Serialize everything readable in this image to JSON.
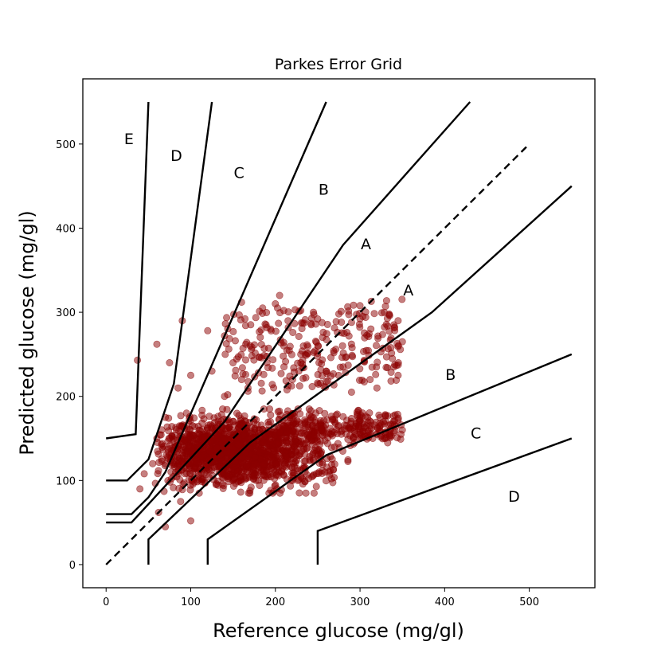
{
  "chart_data": {
    "type": "scatter",
    "title": "Parkes Error Grid",
    "xlabel": "Reference glucose (mg/gl)",
    "ylabel": "Predicted glucose (mg/gl)",
    "xlim": [
      -27.5,
      577.5
    ],
    "ylim": [
      -27.5,
      577.5
    ],
    "xticks": [
      0,
      100,
      200,
      300,
      400,
      500
    ],
    "yticks": [
      0,
      100,
      200,
      300,
      400,
      500
    ],
    "grid": false,
    "point_color": "#8b0000",
    "identity_line": [
      [
        0,
        0
      ],
      [
        500,
        500
      ]
    ],
    "zone_boundaries": [
      {
        "name": "A-B upper",
        "points": [
          [
            0,
            50
          ],
          [
            30,
            50
          ],
          [
            140,
            170
          ],
          [
            280,
            380
          ],
          [
            430,
            550
          ]
        ]
      },
      {
        "name": "A-B lower",
        "points": [
          [
            50,
            0
          ],
          [
            50,
            30
          ],
          [
            170,
            145
          ],
          [
            385,
            300
          ],
          [
            550,
            450
          ]
        ]
      },
      {
        "name": "B-C upper",
        "points": [
          [
            0,
            60
          ],
          [
            30,
            60
          ],
          [
            50,
            80
          ],
          [
            70,
            110
          ],
          [
            260,
            550
          ]
        ]
      },
      {
        "name": "B-C lower",
        "points": [
          [
            120,
            0
          ],
          [
            120,
            30
          ],
          [
            260,
            130
          ],
          [
            550,
            250
          ]
        ]
      },
      {
        "name": "C-D upper",
        "points": [
          [
            0,
            100
          ],
          [
            25,
            100
          ],
          [
            50,
            125
          ],
          [
            80,
            215
          ],
          [
            125,
            550
          ]
        ]
      },
      {
        "name": "C-D lower",
        "points": [
          [
            250,
            0
          ],
          [
            250,
            40
          ],
          [
            550,
            150
          ]
        ]
      },
      {
        "name": "D-E upper",
        "points": [
          [
            0,
            150
          ],
          [
            35,
            155
          ],
          [
            50,
            550
          ]
        ]
      }
    ],
    "zone_labels": [
      {
        "text": "E",
        "x": 27,
        "y": 505
      },
      {
        "text": "D",
        "x": 83,
        "y": 485
      },
      {
        "text": "C",
        "x": 157,
        "y": 465
      },
      {
        "text": "B",
        "x": 257,
        "y": 445
      },
      {
        "text": "A",
        "x": 307,
        "y": 380
      },
      {
        "text": "A",
        "x": 357,
        "y": 325
      },
      {
        "text": "B",
        "x": 407,
        "y": 225
      },
      {
        "text": "C",
        "x": 437,
        "y": 155
      },
      {
        "text": "D",
        "x": 482,
        "y": 80
      }
    ],
    "scatter_summary": {
      "description": "Dense cloud of several hundred points; approximate spread used to regenerate",
      "x_range": [
        35,
        350
      ],
      "y_range": [
        45,
        320
      ],
      "dense_core": {
        "x": [
          50,
          230
        ],
        "y": [
          90,
          185
        ]
      },
      "upper_band": {
        "x": [
          130,
          350
        ],
        "y": [
          190,
          320
        ]
      },
      "horizontal_band": {
        "x": [
          200,
          350
        ],
        "y": [
          150,
          185
        ]
      },
      "samples": [
        [
          37,
          243
        ],
        [
          60,
          262
        ],
        [
          75,
          240
        ],
        [
          90,
          290
        ],
        [
          120,
          278
        ],
        [
          140,
          272
        ],
        [
          150,
          240
        ],
        [
          160,
          312
        ],
        [
          185,
          305
        ],
        [
          200,
          310
        ],
        [
          205,
          320
        ],
        [
          215,
          290
        ],
        [
          230,
          302
        ],
        [
          245,
          300
        ],
        [
          250,
          292
        ],
        [
          275,
          298
        ],
        [
          290,
          288
        ],
        [
          300,
          292
        ],
        [
          330,
          307
        ],
        [
          335,
          296
        ],
        [
          340,
          285
        ],
        [
          345,
          290
        ],
        [
          350,
          265
        ],
        [
          340,
          235
        ],
        [
          345,
          225
        ],
        [
          320,
          210
        ],
        [
          290,
          205
        ],
        [
          280,
          235
        ],
        [
          260,
          230
        ],
        [
          230,
          250
        ],
        [
          210,
          260
        ],
        [
          190,
          240
        ],
        [
          180,
          228
        ],
        [
          165,
          262
        ],
        [
          160,
          220
        ],
        [
          140,
          200
        ],
        [
          125,
          230
        ],
        [
          100,
          225
        ],
        [
          85,
          210
        ],
        [
          70,
          175
        ],
        [
          60,
          150
        ],
        [
          55,
          120
        ],
        [
          45,
          108
        ],
        [
          40,
          90
        ],
        [
          62,
          62
        ],
        [
          70,
          45
        ],
        [
          100,
          52
        ],
        [
          88,
          75
        ],
        [
          110,
          85
        ],
        [
          130,
          95
        ],
        [
          170,
          88
        ],
        [
          180,
          100
        ],
        [
          200,
          110
        ],
        [
          215,
          120
        ],
        [
          230,
          105
        ],
        [
          250,
          130
        ],
        [
          270,
          140
        ],
        [
          300,
          150
        ],
        [
          320,
          155
        ],
        [
          330,
          150
        ],
        [
          345,
          172
        ],
        [
          350,
          160
        ],
        [
          300,
          175
        ],
        [
          240,
          178
        ],
        [
          150,
          170
        ],
        [
          95,
          180
        ],
        [
          110,
          160
        ],
        [
          120,
          140
        ],
        [
          140,
          150
        ],
        [
          160,
          130
        ],
        [
          180,
          140
        ],
        [
          200,
          150
        ]
      ]
    }
  }
}
